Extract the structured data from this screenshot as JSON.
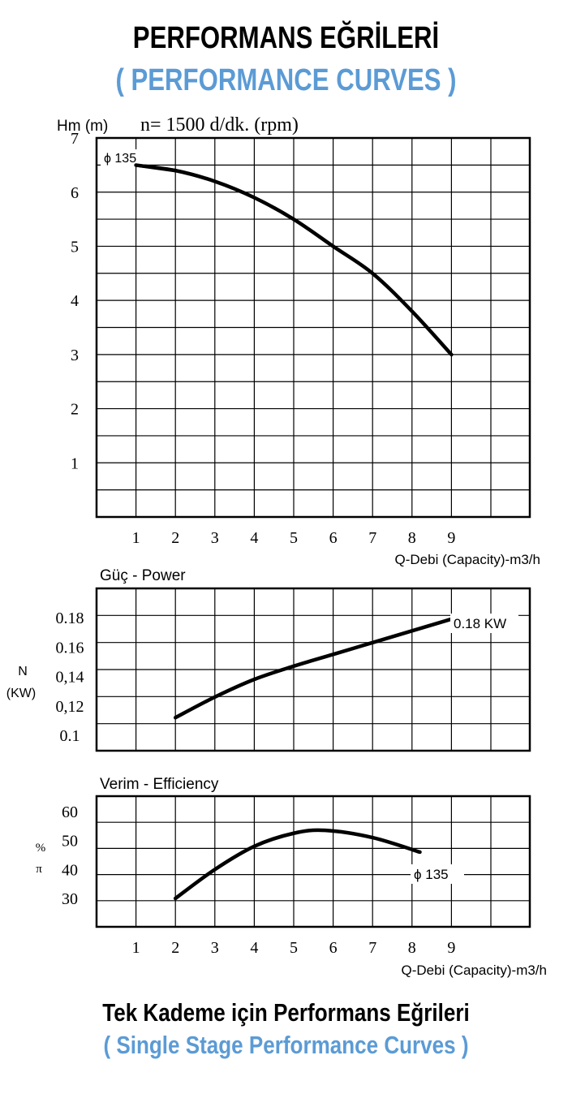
{
  "header": {
    "title": "PERFORMANS EĞRİLERİ",
    "subtitle": "( PERFORMANCE CURVES )",
    "accent_color": "#5b9bd5"
  },
  "footer": {
    "title": "Tek Kademe için Performans Eğrileri",
    "subtitle": "( Single Stage Performance Curves )",
    "accent_color": "#5b9bd5"
  },
  "chart_data": [
    {
      "type": "line",
      "title": "n= 1500 d/dk. (rpm)",
      "ylabel": "Hm (m)",
      "xlabel": "Q-Debi (Capacity)-m3/h",
      "x_ticks": [
        "1",
        "2",
        "3",
        "4",
        "5",
        "6",
        "7",
        "8",
        "9"
      ],
      "y_ticks": [
        "1",
        "2",
        "3",
        "4",
        "5",
        "6",
        "7"
      ],
      "xlim": [
        0,
        11
      ],
      "ylim": [
        0,
        7
      ],
      "grid": true,
      "annotations": [
        "ϕ 135"
      ],
      "series": [
        {
          "name": "ϕ 135",
          "x": [
            1,
            2,
            3,
            4,
            5,
            6,
            7,
            8,
            9
          ],
          "y": [
            6.5,
            6.4,
            6.2,
            5.9,
            5.5,
            5.0,
            4.5,
            3.8,
            3.0
          ]
        }
      ]
    },
    {
      "type": "line",
      "title": "Güç - Power",
      "ylabel": "N (KW)",
      "y_ticks": [
        "0.1",
        "0,12",
        "0,14",
        "0.16",
        "0.18"
      ],
      "xlim": [
        0,
        11
      ],
      "ylim": [
        0.09,
        0.2
      ],
      "grid": true,
      "annotations": [
        "0.18 KW"
      ],
      "series": [
        {
          "name": "0.18 KW",
          "x": [
            2,
            3,
            4,
            5,
            6,
            7,
            8,
            9
          ],
          "y": [
            0.112,
            0.126,
            0.138,
            0.147,
            0.155,
            0.163,
            0.171,
            0.179
          ]
        }
      ]
    },
    {
      "type": "line",
      "title": "Verim - Efficiency",
      "ylabel": "% π",
      "xlabel": "Q-Debi (Capacity)-m3/h",
      "x_ticks": [
        "1",
        "2",
        "3",
        "4",
        "5",
        "6",
        "7",
        "8",
        "9"
      ],
      "y_ticks": [
        "30",
        "40",
        "50",
        "60"
      ],
      "xlim": [
        0,
        11
      ],
      "ylim": [
        20,
        65
      ],
      "grid": true,
      "annotations": [
        "ϕ 135"
      ],
      "series": [
        {
          "name": "ϕ 135",
          "x": [
            2,
            3,
            4,
            5,
            5.8,
            7,
            8.2
          ],
          "y": [
            30,
            40,
            48,
            52.5,
            53.5,
            51,
            46
          ]
        }
      ]
    }
  ]
}
